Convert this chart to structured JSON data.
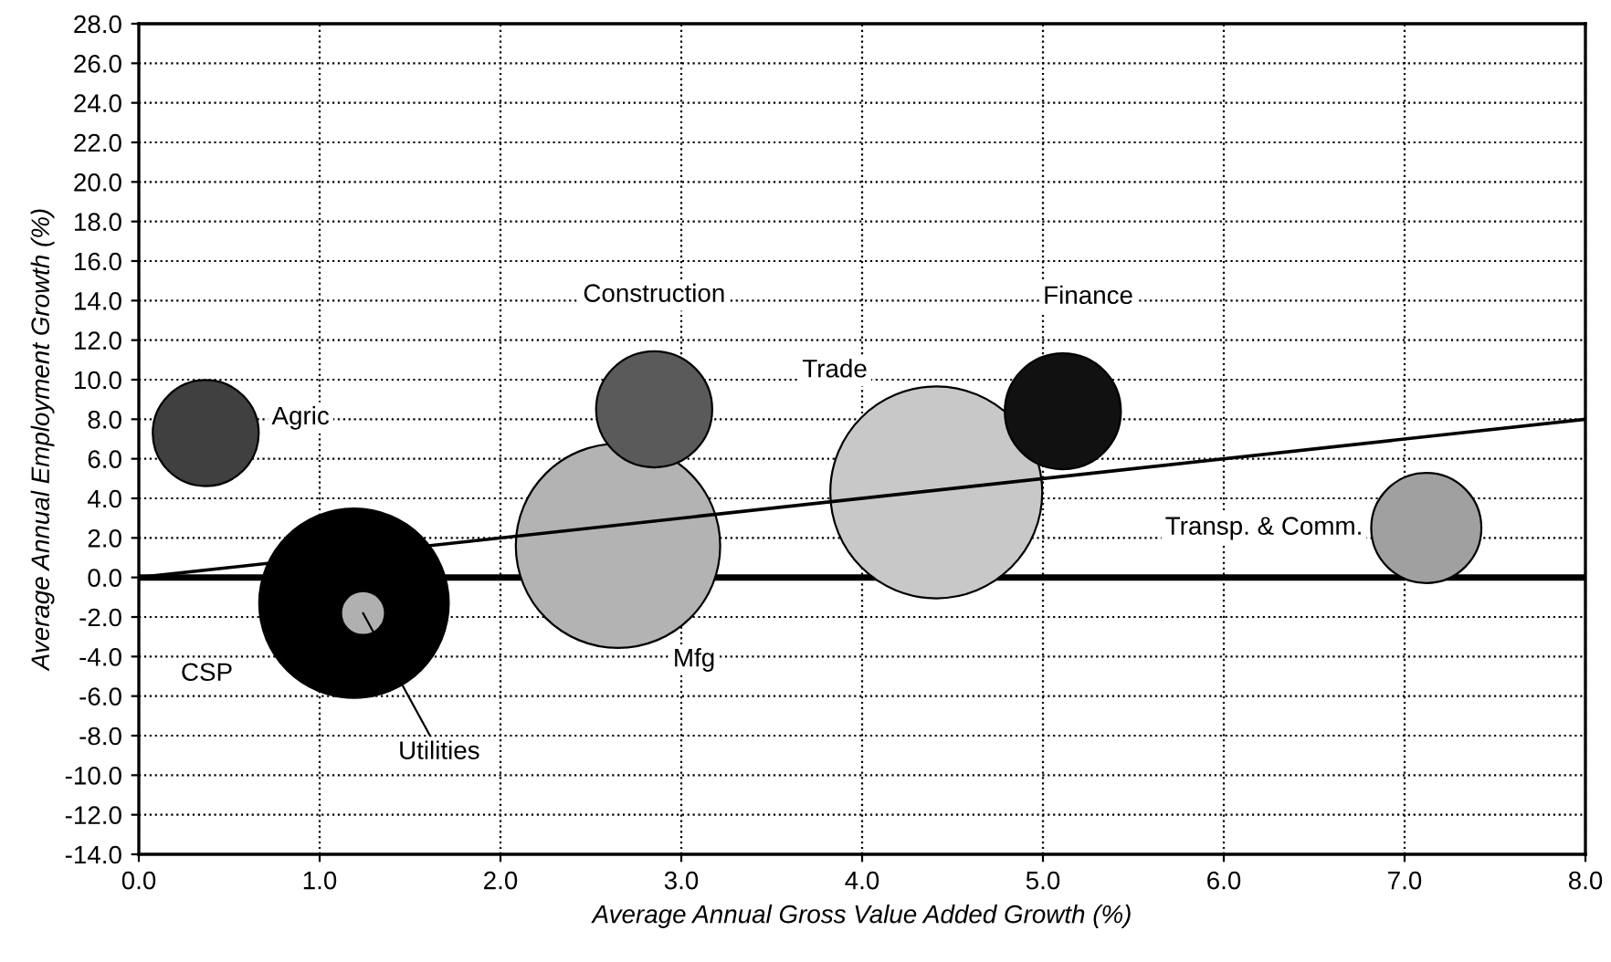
{
  "chart_data": {
    "type": "bubble",
    "xlabel": "Average Annual Gross Value Added Growth (%)",
    "ylabel": "Average Annual Employment Growth (%)",
    "xlim": [
      0,
      8
    ],
    "xticks": [
      {
        "value": 0,
        "label": "0.0"
      },
      {
        "value": 1,
        "label": "1.0"
      },
      {
        "value": 2,
        "label": "2.0"
      },
      {
        "value": 3,
        "label": "3.0"
      },
      {
        "value": 4,
        "label": "4.0"
      },
      {
        "value": 5,
        "label": "5.0"
      },
      {
        "value": 6,
        "label": "6.0"
      },
      {
        "value": 7,
        "label": "7.0"
      },
      {
        "value": 8,
        "label": "8.0"
      }
    ],
    "ylim": [
      -14,
      28
    ],
    "yticks": [
      {
        "value": -14,
        "label": "-14.0"
      },
      {
        "value": -12,
        "label": "-12.0"
      },
      {
        "value": -10,
        "label": "-10.0"
      },
      {
        "value": -8,
        "label": "-8.0"
      },
      {
        "value": -6,
        "label": "-6.0"
      },
      {
        "value": -4,
        "label": "-4.0"
      },
      {
        "value": -2,
        "label": "-2.0"
      },
      {
        "value": 0,
        "label": "0.0"
      },
      {
        "value": 2,
        "label": "2.0"
      },
      {
        "value": 4,
        "label": "4.0"
      },
      {
        "value": 6,
        "label": "6.0"
      },
      {
        "value": 8,
        "label": "8.0"
      },
      {
        "value": 10,
        "label": "10.0"
      },
      {
        "value": 12,
        "label": "12.0"
      },
      {
        "value": 14,
        "label": "14.0"
      },
      {
        "value": 16,
        "label": "16.0"
      },
      {
        "value": 18,
        "label": "18.0"
      },
      {
        "value": 20,
        "label": "20.0"
      },
      {
        "value": 22,
        "label": "22.0"
      },
      {
        "value": 24,
        "label": "24.0"
      },
      {
        "value": 26,
        "label": "26.0"
      },
      {
        "value": 28,
        "label": "28.0"
      }
    ],
    "grid": true,
    "line_style": "dotted",
    "ref_lines": [
      {
        "axis": "y",
        "value": 0,
        "label": null,
        "color": "#000000"
      }
    ],
    "series": [
      {
        "name": "Agric",
        "color": "#404040",
        "x": [
          0.37
        ],
        "values": [
          7.3
        ],
        "sizes": [
          0.25
        ]
      },
      {
        "name": "CSP",
        "color": "#000000",
        "x": [
          1.19
        ],
        "values": [
          -1.3
        ],
        "sizes": [
          0.8
        ]
      },
      {
        "name": "Utilities",
        "color": "#b0b0b0",
        "x": [
          1.24
        ],
        "values": [
          -1.8
        ],
        "sizes": [
          0.043
        ]
      },
      {
        "name": "Mfg",
        "color": "#b3b3b3",
        "x": [
          2.65
        ],
        "values": [
          1.6
        ],
        "sizes": [
          0.93
        ]
      },
      {
        "name": "Construction",
        "color": "#5a5a5a",
        "x": [
          2.85
        ],
        "values": [
          8.5
        ],
        "sizes": [
          0.3
        ]
      },
      {
        "name": "Trade",
        "color": "#c8c8c8",
        "x": [
          4.41
        ],
        "values": [
          4.3
        ],
        "sizes": [
          1.0
        ]
      },
      {
        "name": "Finance",
        "color": "#111111",
        "x": [
          5.11
        ],
        "values": [
          8.4
        ],
        "sizes": [
          0.3
        ]
      },
      {
        "name": "Transp. & Comm.",
        "color": "#a0a0a0",
        "x": [
          7.12
        ],
        "values": [
          2.5
        ],
        "sizes": [
          0.27
        ]
      },
      {
        "type": "line",
        "color": "#000000",
        "line_style": "solid",
        "x": [
          0,
          8
        ],
        "values": [
          0,
          8
        ]
      }
    ]
  }
}
